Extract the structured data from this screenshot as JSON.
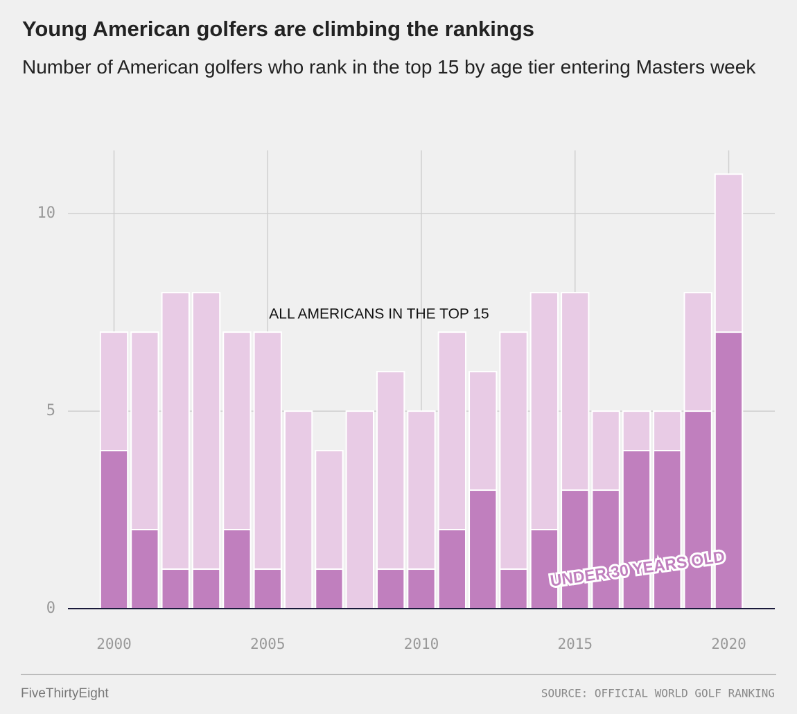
{
  "chart_data": {
    "type": "bar",
    "title": "Young American golfers are climbing the rankings",
    "subtitle": "Number of American golfers who rank in the top 15 by age tier entering Masters week",
    "x": [
      2000,
      2001,
      2002,
      2003,
      2004,
      2005,
      2006,
      2007,
      2008,
      2009,
      2010,
      2011,
      2012,
      2013,
      2014,
      2015,
      2016,
      2017,
      2018,
      2019,
      2020
    ],
    "series": [
      {
        "name": "ALL AMERICANS IN THE TOP 15",
        "color": "#e8cbe5",
        "values": [
          7,
          7,
          8,
          8,
          7,
          7,
          5,
          4,
          5,
          6,
          5,
          7,
          6,
          7,
          8,
          8,
          5,
          5,
          5,
          8,
          11
        ]
      },
      {
        "name": "UNDER 30 YEARS OLD",
        "color": "#c07fbe",
        "values": [
          4,
          2,
          1,
          1,
          2,
          1,
          0,
          1,
          0,
          1,
          1,
          2,
          3,
          1,
          2,
          3,
          3,
          4,
          4,
          5,
          7
        ]
      }
    ],
    "xlim": [
      1998.5,
      2021.5
    ],
    "xticks": [
      2000,
      2005,
      2010,
      2015,
      2020
    ],
    "ylim": [
      0,
      11.6
    ],
    "yticks": [
      0,
      5,
      10
    ],
    "grid": true,
    "footer_left": "FiveThirtyEight",
    "footer_right": "SOURCE: OFFICIAL WORLD GOLF RANKING"
  }
}
